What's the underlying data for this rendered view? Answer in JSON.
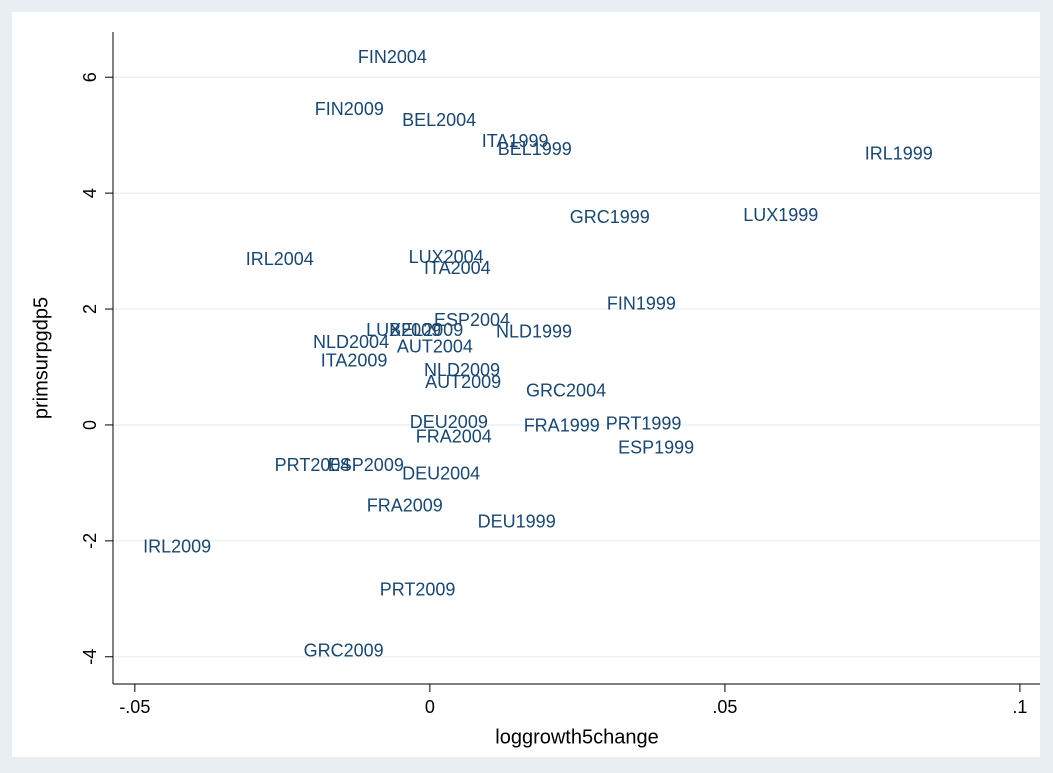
{
  "chart_data": {
    "type": "scatter",
    "xlabel": "loggrowth5change",
    "ylabel": "primsurpgdp5",
    "color": "#1a476f",
    "labels": [
      "FIN2004",
      "FIN2009",
      "BEL2004",
      "ITA1999",
      "BEL1999",
      "IRL1999",
      "GRC1999",
      "LUX1999",
      "IRL2004",
      "LUX2004",
      "ITA2004",
      "FIN1999",
      "ESP2004",
      "NLD1999",
      "LUX2009",
      "BEL2009",
      "NLD2004",
      "AUT2004",
      "ITA2009",
      "NLD2009",
      "AUT2009",
      "GRC2004",
      "DEU2009",
      "PRT1999",
      "FRA1999",
      "FRA2004",
      "ESP1999",
      "PRT2004",
      "ESP2009",
      "DEU2004",
      "FRA2009",
      "DEU1999",
      "IRL2009",
      "PRT2009",
      "GRC2009"
    ],
    "x": [
      -0.0122,
      -0.0195,
      -0.0047,
      0.0088,
      0.0115,
      0.0737,
      0.0237,
      0.0531,
      -0.0312,
      -0.0036,
      -0.001,
      0.03,
      0.0007,
      0.0112,
      -0.0108,
      -0.0069,
      -0.0198,
      -0.0056,
      -0.0185,
      -0.001,
      -0.0008,
      0.0163,
      -0.0034,
      0.0298,
      0.0159,
      -0.0024,
      0.0319,
      -0.0263,
      -0.0173,
      -0.0047,
      -0.0107,
      0.0081,
      -0.0486,
      -0.0085,
      -0.0214
    ],
    "values": [
      6.33,
      5.43,
      5.24,
      4.88,
      4.74,
      4.66,
      3.57,
      3.6,
      2.84,
      2.88,
      2.69,
      2.07,
      1.79,
      1.59,
      1.62,
      1.62,
      1.41,
      1.33,
      1.09,
      0.93,
      0.72,
      0.57,
      0.03,
      0,
      -0.03,
      -0.22,
      -0.41,
      -0.71,
      -0.71,
      -0.86,
      -1.41,
      -1.69,
      -2.12,
      -2.86,
      -3.91
    ],
    "xlim": [
      -0.0537,
      0.1034
    ],
    "ylim": [
      -4.47,
      6.78
    ],
    "xticks": [
      {
        "value": -0.05,
        "label": "-.05"
      },
      0,
      {
        "value": 0.05,
        "label": ".05"
      },
      {
        "value": 0.1,
        "label": ".1"
      }
    ],
    "yticks": [
      -4,
      -2,
      0,
      2,
      4,
      6
    ],
    "grid": true
  }
}
